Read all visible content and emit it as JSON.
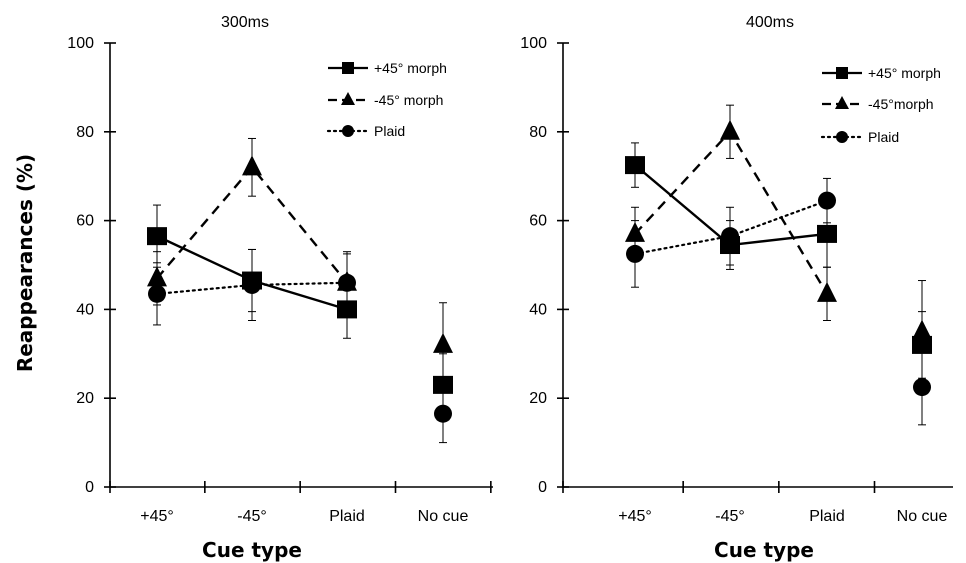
{
  "ylabel": "Reappearances (%)",
  "chart_data": [
    {
      "type": "line",
      "title": "300ms",
      "xlabel": "Cue type",
      "ylabel": "Reappearances (%)",
      "categories": [
        "+45°",
        "-45°",
        "Plaid",
        "No cue"
      ],
      "ylim": [
        0,
        100
      ],
      "yticks": [
        0,
        20,
        40,
        60,
        80,
        100
      ],
      "legend_position": "top-right",
      "series": [
        {
          "name": "+45° morph",
          "marker": "square",
          "dash": "solid",
          "values": [
            56.5,
            46.5,
            40,
            23
          ],
          "err": [
            7,
            7,
            6.5,
            7
          ]
        },
        {
          "name": "-45° morph",
          "marker": "triangle",
          "dash": "dashed",
          "values": [
            47,
            72,
            46,
            32
          ],
          "err": [
            6,
            6.5,
            6.5,
            9.5
          ]
        },
        {
          "name": "Plaid",
          "marker": "circle",
          "dash": "dotted",
          "values": [
            43.5,
            45.5,
            46,
            16.5
          ],
          "err": [
            7,
            8,
            7,
            6.5
          ]
        }
      ]
    },
    {
      "type": "line",
      "title": "400ms",
      "xlabel": "Cue type",
      "ylabel": "",
      "categories": [
        "+45°",
        "-45°",
        "Plaid",
        "No cue"
      ],
      "ylim": [
        0,
        100
      ],
      "yticks": [
        0,
        20,
        40,
        60,
        80,
        100
      ],
      "legend_position": "top-right",
      "series": [
        {
          "name": "+45° morph",
          "marker": "square",
          "dash": "solid",
          "values": [
            72.5,
            54.5,
            57,
            32
          ],
          "err": [
            5,
            5.5,
            7.5,
            7.5
          ]
        },
        {
          "name": "-45°morph",
          "marker": "triangle",
          "dash": "dashed",
          "values": [
            57,
            80,
            43.5,
            35
          ],
          "err": [
            6,
            6,
            6,
            11.5
          ]
        },
        {
          "name": "Plaid",
          "marker": "circle",
          "dash": "dotted",
          "values": [
            52.5,
            56.5,
            64.5,
            22.5
          ],
          "err": [
            7.5,
            6.5,
            5,
            8.5
          ]
        }
      ]
    }
  ]
}
